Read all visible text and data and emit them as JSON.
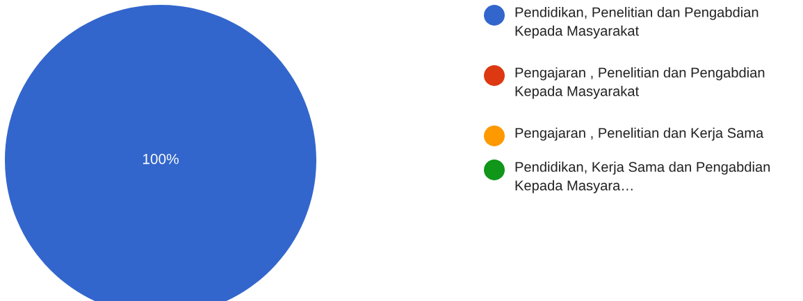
{
  "chart_data": {
    "type": "pie",
    "categories": [
      "Pendidikan, Penelitian dan Pengabdian Kepada Masyarakat",
      "Pengajaran , Penelitian dan Pengabdian Kepada Masyarakat",
      "Pengajaran , Penelitian dan Kerja Sama",
      "Pendidikan, Kerja Sama dan Pengabdian Kepada Masyara…"
    ],
    "values": [
      100,
      0,
      0,
      0
    ],
    "colors": [
      "#3366cc",
      "#dc3912",
      "#ff9900",
      "#109618"
    ],
    "value_labels": [
      "100%",
      null,
      null,
      null
    ],
    "legend": "right"
  }
}
